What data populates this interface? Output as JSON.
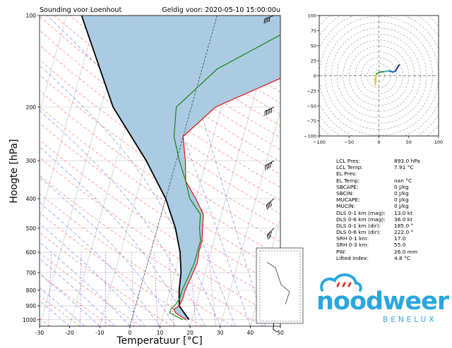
{
  "header": {
    "left_title": "Sounding voor Loenhout",
    "right_title": "Geldig voor: 2020-05-10 15:00:00u"
  },
  "chart_data": [
    {
      "type": "skew-t",
      "xlabel": "Temperatuur [°C]",
      "ylabel": "Hoogte [hPa]",
      "xlim": [
        -30,
        50
      ],
      "ylim": [
        1050,
        100
      ],
      "xticks": [
        -30,
        -20,
        -10,
        0,
        10,
        20,
        30,
        40,
        50
      ],
      "yticks": [
        100,
        200,
        300,
        400,
        500,
        600,
        700,
        800,
        900,
        1000
      ],
      "grid": true,
      "temperature": [
        [
          1000,
          18
        ],
        [
          950,
          14
        ],
        [
          925,
          13
        ],
        [
          900,
          14.5
        ],
        [
          850,
          15
        ],
        [
          800,
          15
        ],
        [
          750,
          15.5
        ],
        [
          700,
          16
        ],
        [
          650,
          16.5
        ],
        [
          600,
          16
        ],
        [
          550,
          16
        ],
        [
          500,
          15
        ],
        [
          450,
          14
        ],
        [
          400,
          10
        ],
        [
          350,
          5
        ],
        [
          300,
          3
        ],
        [
          250,
          0
        ],
        [
          200,
          8
        ],
        [
          150,
          33
        ],
        [
          100,
          50
        ]
      ],
      "dewpoint": [
        [
          1000,
          17
        ],
        [
          950,
          12
        ],
        [
          925,
          12
        ],
        [
          900,
          13
        ],
        [
          850,
          14
        ],
        [
          800,
          14
        ],
        [
          750,
          14.5
        ],
        [
          700,
          15
        ],
        [
          650,
          15.5
        ],
        [
          600,
          15.5
        ],
        [
          550,
          15.5
        ],
        [
          500,
          14
        ],
        [
          450,
          13
        ],
        [
          400,
          8
        ],
        [
          350,
          5
        ],
        [
          300,
          1
        ],
        [
          250,
          -3
        ],
        [
          200,
          -5
        ],
        [
          150,
          5
        ],
        [
          100,
          33
        ]
      ],
      "parcel": [
        [
          1000,
          19
        ],
        [
          900,
          14.5
        ],
        [
          800,
          13
        ],
        [
          700,
          12
        ],
        [
          600,
          9.8
        ],
        [
          500,
          6
        ],
        [
          400,
          0
        ],
        [
          300,
          -10
        ],
        [
          200,
          -26
        ],
        [
          100,
          -45
        ]
      ],
      "wind_barbs_kt": [
        [
          1000,
          10,
          185
        ],
        [
          900,
          15,
          200
        ],
        [
          800,
          20,
          210
        ],
        [
          700,
          25,
          215
        ],
        [
          600,
          30,
          220
        ],
        [
          500,
          35,
          225
        ],
        [
          400,
          40,
          230
        ],
        [
          300,
          45,
          240
        ],
        [
          200,
          50,
          245
        ],
        [
          100,
          40,
          250
        ]
      ]
    },
    {
      "type": "hodograph",
      "xlim": [
        -100,
        100
      ],
      "ylim": [
        -100,
        100
      ],
      "xticks": [
        -100,
        -50,
        0,
        50,
        100
      ],
      "yticks": [
        -100,
        -75,
        -50,
        -25,
        0,
        25,
        50,
        75,
        100
      ],
      "points": [
        [
          -6,
          -15
        ],
        [
          -6,
          -8
        ],
        [
          -4,
          3
        ],
        [
          2,
          6
        ],
        [
          10,
          7
        ],
        [
          18,
          8
        ],
        [
          24,
          6
        ],
        [
          28,
          8
        ],
        [
          30,
          12
        ],
        [
          32,
          15
        ],
        [
          34,
          18
        ]
      ]
    }
  ],
  "params": [
    {
      "label": "LCL Pres:",
      "value": "893.0 hPa"
    },
    {
      "label": "LCL Temp:",
      "value": "7.91 °C"
    },
    {
      "label": "EL Pres:",
      "value": ""
    },
    {
      "label": "EL Temp:",
      "value": "nan °C"
    },
    {
      "label": "SBCAPE:",
      "value": "0 J/kg"
    },
    {
      "label": "SBCIN:",
      "value": "0 J/kg"
    },
    {
      "label": "MUCAPE:",
      "value": "0 J/kg"
    },
    {
      "label": "MUCIN:",
      "value": "0 J/kg"
    },
    {
      "label": "DLS 0-1 km (mag):",
      "value": "13.0 kt"
    },
    {
      "label": "DLS 0-6 km (mag):",
      "value": "36.0 kt"
    },
    {
      "label": "DLS 0-1 km (dir):",
      "value": "185.0 °"
    },
    {
      "label": "DLS 0-6 km (dir):",
      "value": "222.0 °"
    },
    {
      "label": "SRH 0-1 km:",
      "value": "17.0"
    },
    {
      "label": "SRH 0-3 km:",
      "value": "55.0"
    },
    {
      "label": "PW:",
      "value": "26.0 mm"
    },
    {
      "label": "Lifted Index:",
      "value": "4.8 °C"
    }
  ],
  "logo": {
    "word": "noodweer",
    "sub": "BENELUX"
  },
  "colors": {
    "cape_fill": "#a6c8e0",
    "temperature": "#e01010",
    "dewpoint": "#118811",
    "parcel": "#000000",
    "dry_adiabat": "#ff4040",
    "moist_adiabat": "#4060ff",
    "mixing_ratio": "#a040c0",
    "brand": "#2aa6df"
  }
}
